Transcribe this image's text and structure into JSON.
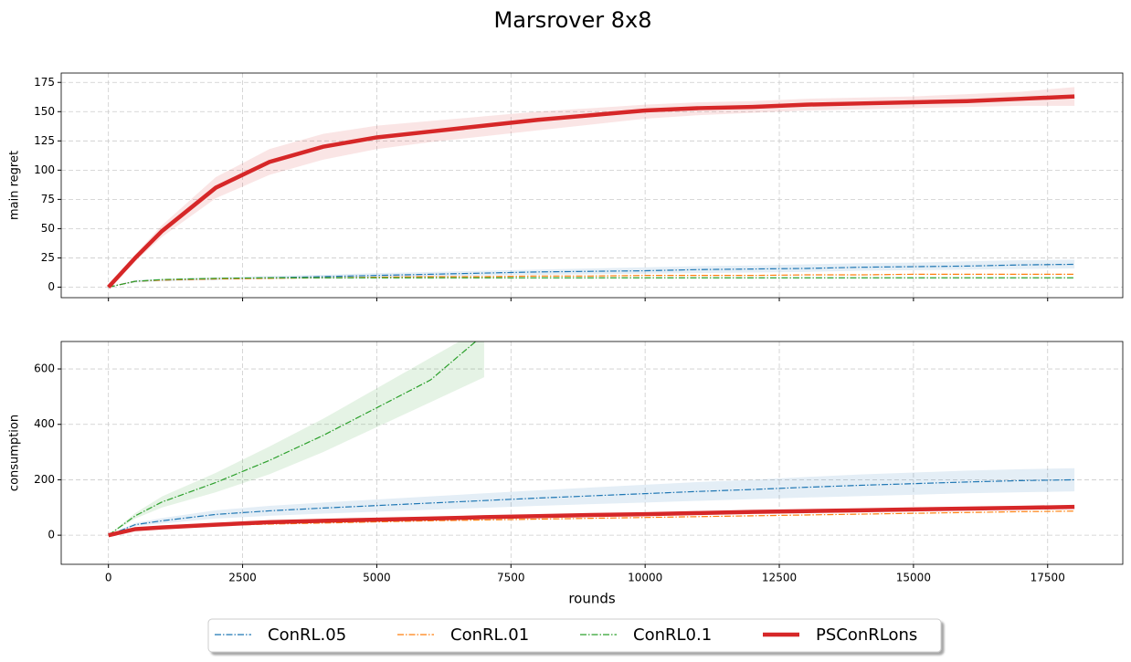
{
  "title": "Marsrover 8x8",
  "legend_loc": "lower center",
  "chart_data": [
    {
      "type": "line",
      "ylabel": "main regret",
      "grid": true,
      "xlim": [
        -880,
        18900
      ],
      "ylim": [
        -9,
        183
      ],
      "yticks": [
        0,
        25,
        50,
        75,
        100,
        125,
        150,
        175
      ],
      "x": [
        0,
        500,
        1000,
        2000,
        3000,
        4000,
        5000,
        6000,
        7000,
        8000,
        9000,
        10000,
        11000,
        12000,
        13000,
        14000,
        15000,
        16000,
        17000,
        18000
      ],
      "series": [
        {
          "name": "ConRL.05",
          "color": "#1f77b4",
          "values": [
            0,
            5,
            6,
            7,
            8,
            9,
            10,
            11,
            12,
            13,
            13.5,
            14,
            15,
            15.5,
            16,
            17,
            17.5,
            18,
            19,
            19.5
          ],
          "lower": [
            0,
            4,
            5,
            6,
            7,
            7.5,
            8,
            9,
            10,
            10.5,
            11,
            11.5,
            12,
            12.5,
            13,
            14,
            14.5,
            15,
            15.5,
            16
          ],
          "upper": [
            0,
            6,
            7,
            8.5,
            9.5,
            10.5,
            12,
            13,
            14,
            15,
            16,
            17,
            18,
            18.5,
            19.5,
            20.5,
            21,
            22,
            23,
            23.5
          ]
        },
        {
          "name": "ConRL.01",
          "color": "#ff7f0e",
          "values": [
            0,
            5,
            6,
            7,
            7.5,
            8,
            8.5,
            9,
            9,
            9.5,
            9.5,
            10,
            10,
            10,
            10.5,
            10.5,
            11,
            11,
            11,
            11
          ]
        },
        {
          "name": "ConRL0.1",
          "color": "#2ca02c",
          "values": [
            0,
            5,
            6.5,
            7.5,
            8,
            8,
            8,
            8,
            8,
            8,
            8,
            8,
            8,
            8,
            8,
            8,
            8,
            8,
            8,
            8
          ]
        },
        {
          "name": "PSConRLons",
          "color": "#d62728",
          "values": [
            0,
            25,
            48,
            85,
            107,
            120,
            128,
            133,
            138,
            143,
            147,
            151,
            153,
            154,
            156,
            157,
            158,
            159,
            161,
            163
          ],
          "lower": [
            0,
            22,
            43,
            76,
            96,
            109,
            118,
            124,
            129,
            134,
            139,
            144,
            147,
            149,
            151,
            152,
            153,
            154,
            155,
            155
          ],
          "upper": [
            0,
            28,
            53,
            94,
            118,
            131,
            138,
            142,
            146,
            150,
            153,
            156,
            158,
            159,
            161,
            162,
            163,
            165,
            167,
            171
          ]
        }
      ]
    },
    {
      "type": "line",
      "ylabel": "consumption",
      "xlabel": "rounds",
      "grid": true,
      "xlim": [
        -880,
        18900
      ],
      "ylim": [
        -105,
        699
      ],
      "yticks": [
        0,
        200,
        400,
        600
      ],
      "xticks": [
        0,
        2500,
        5000,
        7500,
        10000,
        12500,
        15000,
        17500
      ],
      "x": [
        0,
        500,
        1000,
        2000,
        3000,
        4000,
        5000,
        6000,
        7000,
        8000,
        9000,
        10000,
        11000,
        12000,
        13000,
        14000,
        15000,
        16000,
        17000,
        18000
      ],
      "series": [
        {
          "color": "#1f77b4",
          "values": [
            0,
            38,
            52,
            75,
            88,
            98,
            107,
            116,
            125,
            134,
            142,
            150,
            158,
            165,
            173,
            180,
            186,
            192,
            197,
            200
          ],
          "lower": [
            0,
            33,
            42,
            60,
            70,
            78,
            85,
            92,
            99,
            106,
            112,
            118,
            124,
            130,
            136,
            141,
            146,
            151,
            155,
            158
          ],
          "upper": [
            0,
            44,
            62,
            90,
            106,
            118,
            129,
            140,
            151,
            162,
            172,
            182,
            192,
            200,
            210,
            219,
            226,
            233,
            238,
            242
          ]
        },
        {
          "color": "#ff7f0e",
          "values": [
            0,
            20,
            27,
            35,
            40,
            44,
            48,
            52,
            55,
            58,
            61,
            64,
            67,
            70,
            73,
            76,
            79,
            82,
            85,
            87
          ]
        },
        {
          "color": "#2ca02c",
          "values": [
            0,
            70,
            120,
            190,
            270,
            360,
            460,
            560,
            725,
            null,
            null,
            null,
            null,
            null,
            null,
            null,
            null,
            null,
            null,
            null
          ],
          "lower": [
            0,
            60,
            100,
            155,
            220,
            300,
            390,
            480,
            570,
            null,
            null,
            null,
            null,
            null,
            null,
            null,
            null,
            null,
            null,
            null
          ],
          "upper": [
            0,
            80,
            140,
            225,
            320,
            420,
            530,
            640,
            750,
            null,
            null,
            null,
            null,
            null,
            null,
            null,
            null,
            null,
            null,
            null
          ]
        },
        {
          "color": "#d62728",
          "values": [
            0,
            22,
            28,
            38,
            47,
            52,
            56,
            60,
            65,
            69,
            73,
            76,
            80,
            84,
            87,
            90,
            93,
            96,
            99,
            102
          ]
        }
      ]
    }
  ]
}
